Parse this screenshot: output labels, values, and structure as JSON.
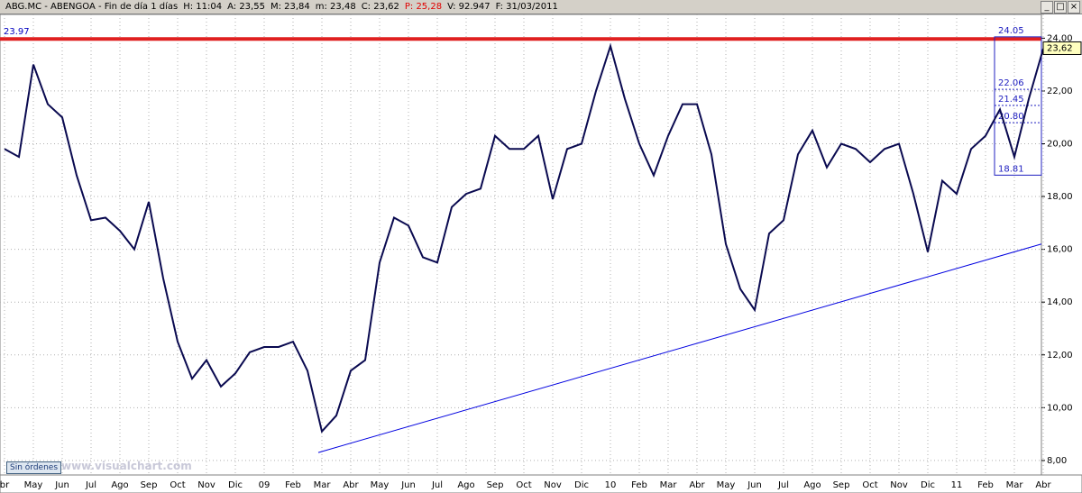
{
  "chart_data": {
    "type": "line",
    "header": [
      {
        "text": "ABG.MC - ABENGOA - Fin de día 1 días",
        "color": "#000000"
      },
      {
        "text": "H: 11:04",
        "color": "#000000"
      },
      {
        "text": "A: 23,55",
        "color": "#000000"
      },
      {
        "text": "M: 23,84",
        "color": "#000000"
      },
      {
        "text": "m: 23,48",
        "color": "#000000"
      },
      {
        "text": "C: 23,62",
        "color": "#000000"
      },
      {
        "text": "P: 25,28",
        "color": "#e00000"
      },
      {
        "text": "V: 92.947",
        "color": "#000000"
      },
      {
        "text": "F: 31/03/2011",
        "color": "#000000"
      }
    ],
    "month_labels": [
      "br",
      "May",
      "Jun",
      "Jul",
      "Ago",
      "Sep",
      "Oct",
      "Nov",
      "Dic",
      "09",
      "Feb",
      "Mar",
      "Abr",
      "May",
      "Jun",
      "Jul",
      "Ago",
      "Sep",
      "Oct",
      "Nov",
      "Dic",
      "10",
      "Feb",
      "Mar",
      "Abr",
      "May",
      "Jun",
      "Jul",
      "Ago",
      "Sep",
      "Oct",
      "Nov",
      "Dic",
      "11",
      "Feb",
      "Mar",
      "Abr"
    ],
    "values": [
      19.8,
      19.5,
      23.0,
      21.5,
      21.0,
      18.8,
      17.1,
      17.2,
      16.7,
      16.0,
      17.8,
      14.9,
      12.5,
      11.1,
      11.8,
      10.8,
      11.3,
      12.1,
      12.3,
      12.3,
      12.5,
      11.4,
      9.1,
      9.7,
      11.4,
      11.8,
      15.5,
      17.2,
      16.9,
      15.7,
      15.5,
      17.6,
      18.1,
      18.3,
      20.3,
      19.8,
      19.8,
      20.3,
      17.9,
      19.8,
      20.0,
      22.0,
      23.7,
      21.7,
      20.0,
      18.8,
      20.3,
      21.5,
      21.5,
      19.6,
      16.2,
      14.5,
      13.7,
      16.6,
      17.1,
      19.6,
      20.5,
      19.1,
      20.0,
      19.8,
      19.3,
      19.8,
      20.0,
      18.1,
      15.9,
      18.6,
      18.1,
      19.8,
      20.3,
      21.3,
      19.5,
      21.7,
      23.6
    ],
    "color": "#0a0a50",
    "ylim": [
      7.45,
      24.9
    ],
    "yticks": [
      {
        "value": 8,
        "label": "8,00"
      },
      {
        "value": 10,
        "label": "10,00"
      },
      {
        "value": 12,
        "label": "12,00"
      },
      {
        "value": 14,
        "label": "14,00"
      },
      {
        "value": 16,
        "label": "16,00"
      },
      {
        "value": 18,
        "label": "18,00"
      },
      {
        "value": 20,
        "label": "20,00"
      },
      {
        "value": 22,
        "label": "22,00"
      },
      {
        "value": 24,
        "label": "24,00"
      }
    ],
    "grid": true,
    "resistance": {
      "value": 23.97,
      "label": "23.97",
      "color": "#e02020"
    },
    "trendline": {
      "values": [
        8.3,
        16.2
      ],
      "color": "#0000e0"
    },
    "box_levels": [
      {
        "value": 24.05,
        "label": "24.05"
      },
      {
        "value": 22.06,
        "label": "22.06"
      },
      {
        "value": 21.45,
        "label": "21.45"
      },
      {
        "value": 20.8,
        "label": "20.80"
      },
      {
        "value": 18.81,
        "label": "18.81"
      }
    ],
    "last_price": {
      "value": 23.62,
      "label": "23,62"
    },
    "status": "Sin órdenes",
    "watermark": "www.visualchart.com"
  }
}
